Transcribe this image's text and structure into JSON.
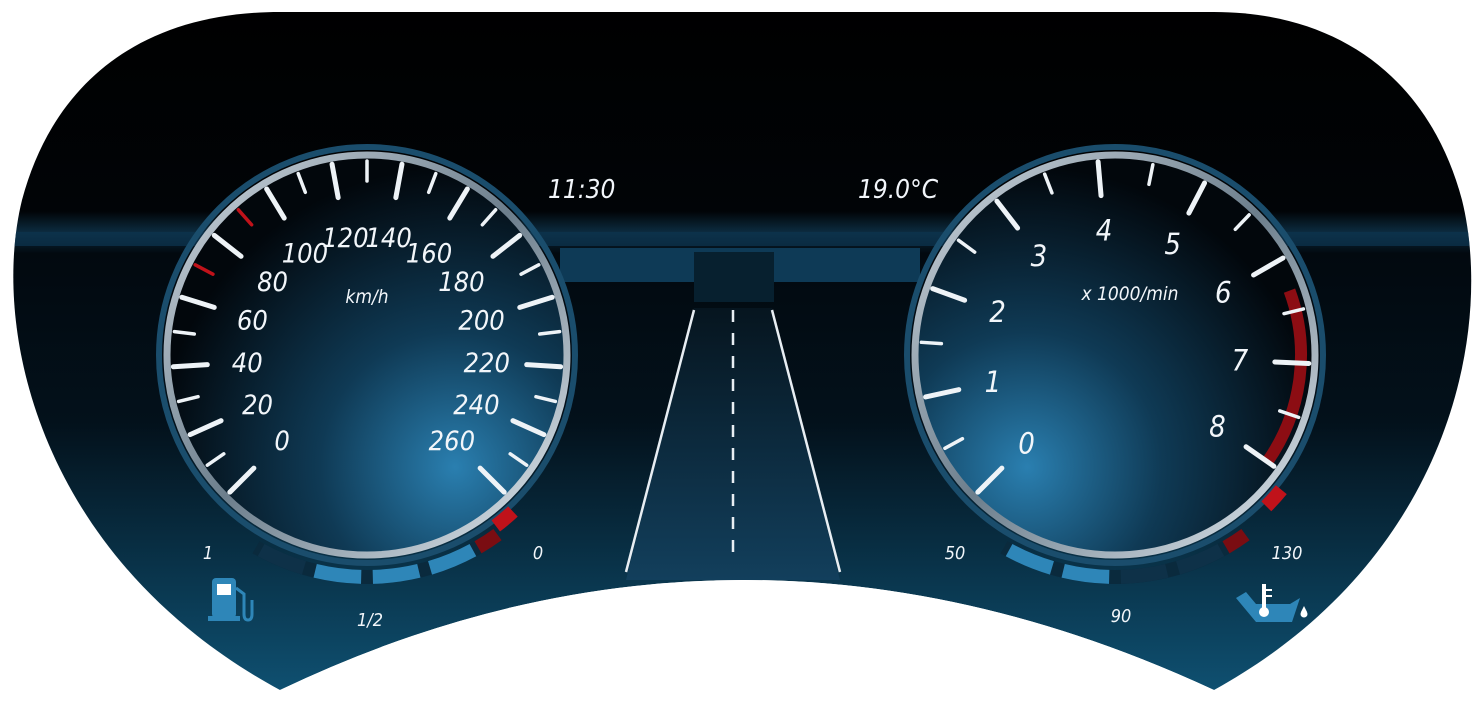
{
  "clock": {
    "time": "11:30"
  },
  "ambient": {
    "temperature": "19.0°C"
  },
  "speedometer": {
    "unit": "km/h",
    "labels": [
      "0",
      "20",
      "40",
      "60",
      "80",
      "100",
      "120",
      "140",
      "160",
      "180",
      "200",
      "220",
      "240",
      "260"
    ]
  },
  "tachometer": {
    "unit": "x 1000/min",
    "labels": [
      "0",
      "1",
      "2",
      "3",
      "4",
      "5",
      "6",
      "7",
      "8"
    ]
  },
  "fuel_gauge": {
    "labels": {
      "full": "1",
      "half": "1/2",
      "empty": "0"
    },
    "icon": "fuel-pump-icon",
    "level": 0.8
  },
  "temperature_gauge": {
    "labels": {
      "low": "50",
      "mid": "90",
      "high": "130"
    },
    "icon": "coolant-temperature-icon",
    "level": 0.5
  },
  "colors": {
    "accent": "#2e86b8",
    "warning": "#c0121a",
    "background": "#000000"
  }
}
